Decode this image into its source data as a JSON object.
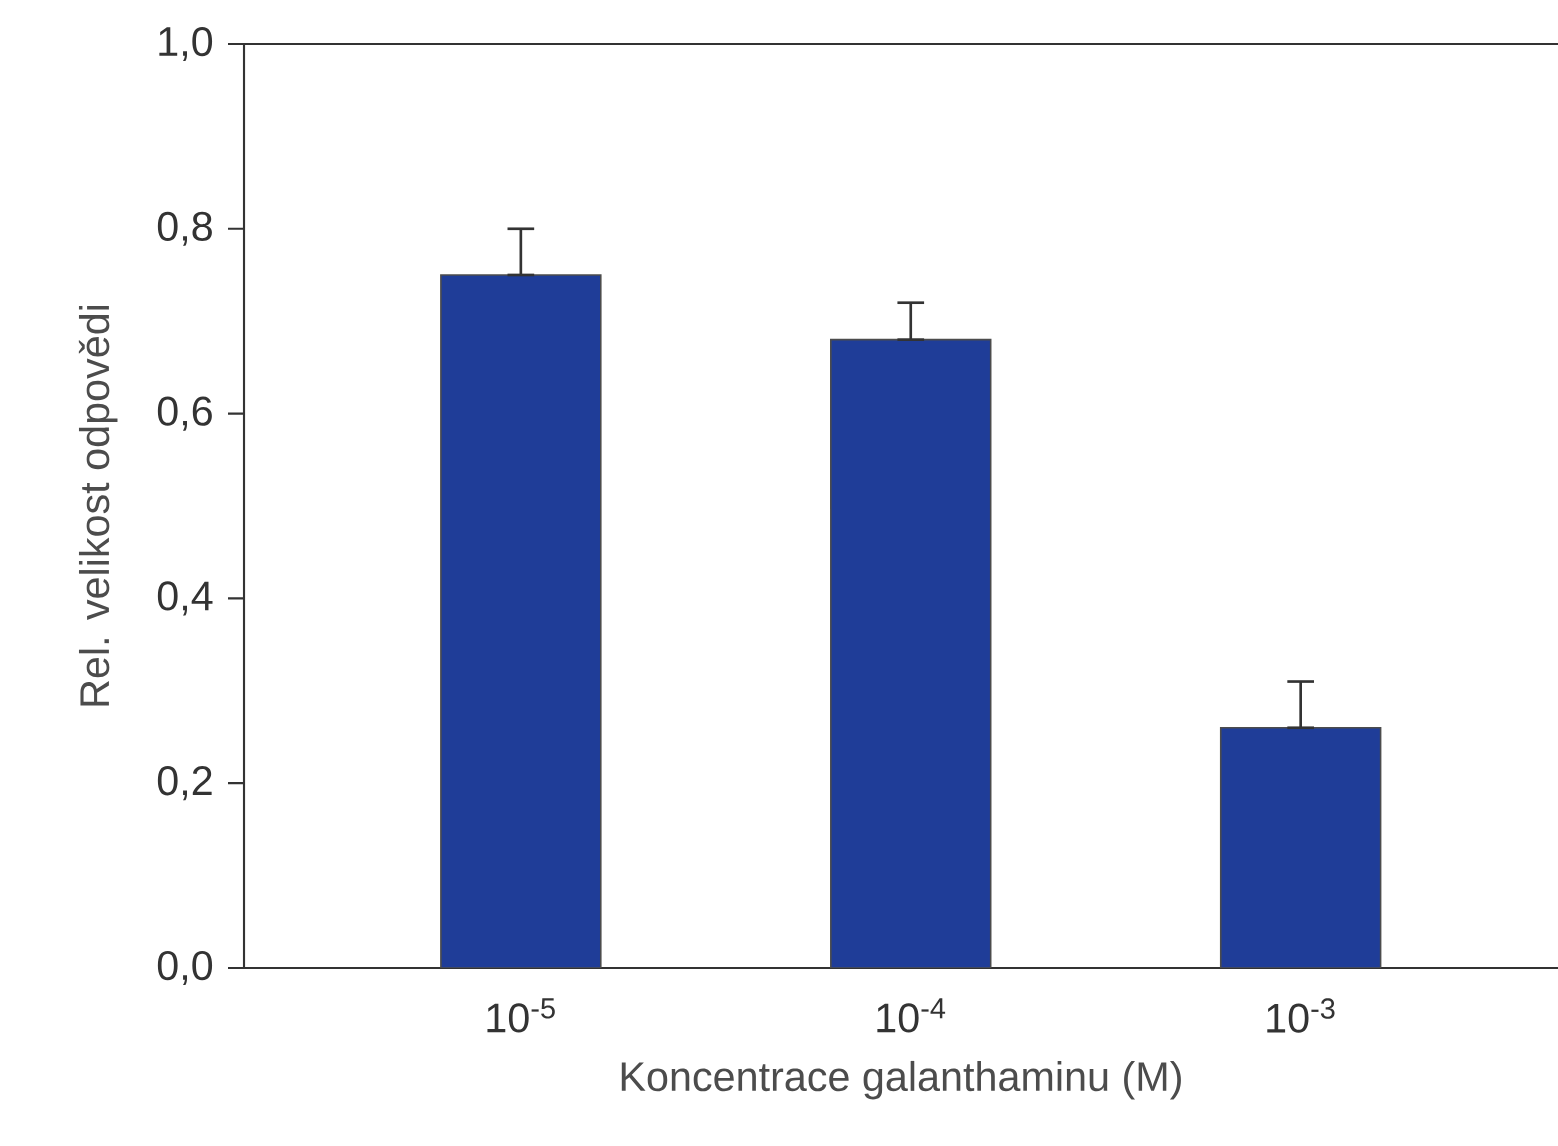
{
  "chart_data": {
    "type": "bar",
    "xlabel": "Koncentrace galanthaminu (M)",
    "ylabel": "Rel. velikost odpovědi",
    "categories": [
      "10$^{-5}$",
      "10$^{-4}$",
      "10$^{-3}$"
    ],
    "values": [
      0.75,
      0.68,
      0.26
    ],
    "errors": [
      [
        0.75,
        0.8
      ],
      [
        0.68,
        0.72
      ],
      [
        0.26,
        0.31
      ]
    ],
    "color": "#1f3d98",
    "ylim": [
      0,
      1.0
    ],
    "yticks": [
      {
        "value": 0,
        "label": "0,0"
      },
      {
        "value": 0.2,
        "label": "0,2"
      },
      {
        "value": 0.4,
        "label": "0,4"
      },
      {
        "value": 0.6,
        "label": "0,6"
      },
      {
        "value": 0.8,
        "label": "0,8"
      },
      {
        "value": 1.0,
        "label": "1,0"
      }
    ],
    "grid": false
  }
}
